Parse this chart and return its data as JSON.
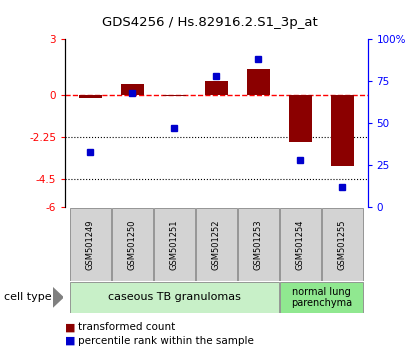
{
  "title": "GDS4256 / Hs.82916.2.S1_3p_at",
  "samples": [
    "GSM501249",
    "GSM501250",
    "GSM501251",
    "GSM501252",
    "GSM501253",
    "GSM501254",
    "GSM501255"
  ],
  "red_values": [
    -0.15,
    0.6,
    -0.05,
    0.75,
    1.4,
    -2.5,
    -3.8
  ],
  "blue_values": [
    33,
    68,
    47,
    78,
    88,
    28,
    12
  ],
  "ylim_left": [
    -6,
    3
  ],
  "ylim_right": [
    0,
    100
  ],
  "yticks_left": [
    3,
    0,
    -2.25,
    -4.5,
    -6
  ],
  "ytick_labels_left": [
    "3",
    "0",
    "-2.25",
    "-4.5",
    "-6"
  ],
  "yticks_right": [
    100,
    75,
    50,
    25,
    0
  ],
  "ytick_labels_right": [
    "100%",
    "75",
    "50",
    "25",
    "0"
  ],
  "hlines": [
    -2.25,
    -4.5
  ],
  "group1_label": "caseous TB granulomas",
  "group2_label": "normal lung\nparenchyma",
  "group1_indices": [
    0,
    1,
    2,
    3,
    4
  ],
  "group2_indices": [
    5,
    6
  ],
  "cell_type_label": "cell type",
  "legend_red": "transformed count",
  "legend_blue": "percentile rank within the sample",
  "bar_color": "#8B0000",
  "dot_color": "#0000CD",
  "group1_bg": "#c8f0c8",
  "group2_bg": "#90e890",
  "sample_bg": "#d3d3d3",
  "background_color": "#ffffff"
}
